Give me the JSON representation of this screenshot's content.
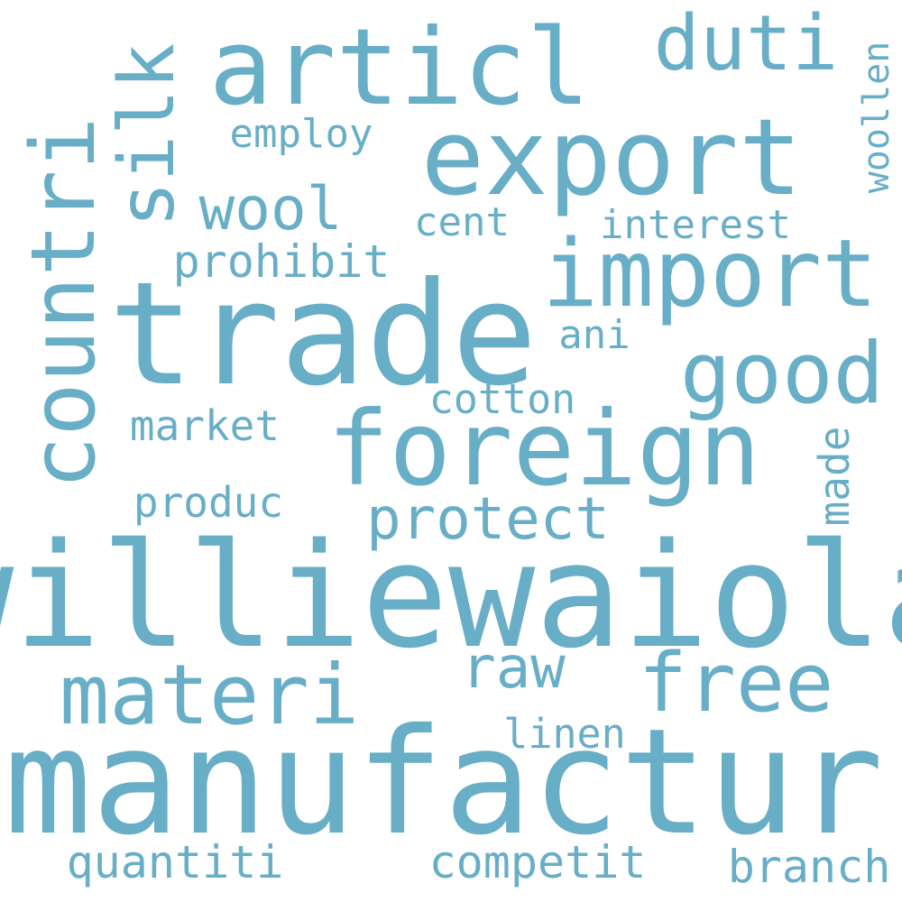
{
  "color": "#68AEC7",
  "background": "#FFFFFF",
  "words": [
    "williewaiola",
    "manufactur",
    "trade",
    "foreign",
    "countri",
    "export",
    "import",
    "articl",
    "materi",
    "free",
    "good",
    "silk",
    "duti",
    "protect",
    "raw",
    "wool",
    "competit",
    "quantiti",
    "branch",
    "interest",
    "cotton",
    "prohibit",
    "market",
    "produc",
    "employ",
    "cent",
    "linen",
    "ani",
    "made",
    "woollen"
  ]
}
